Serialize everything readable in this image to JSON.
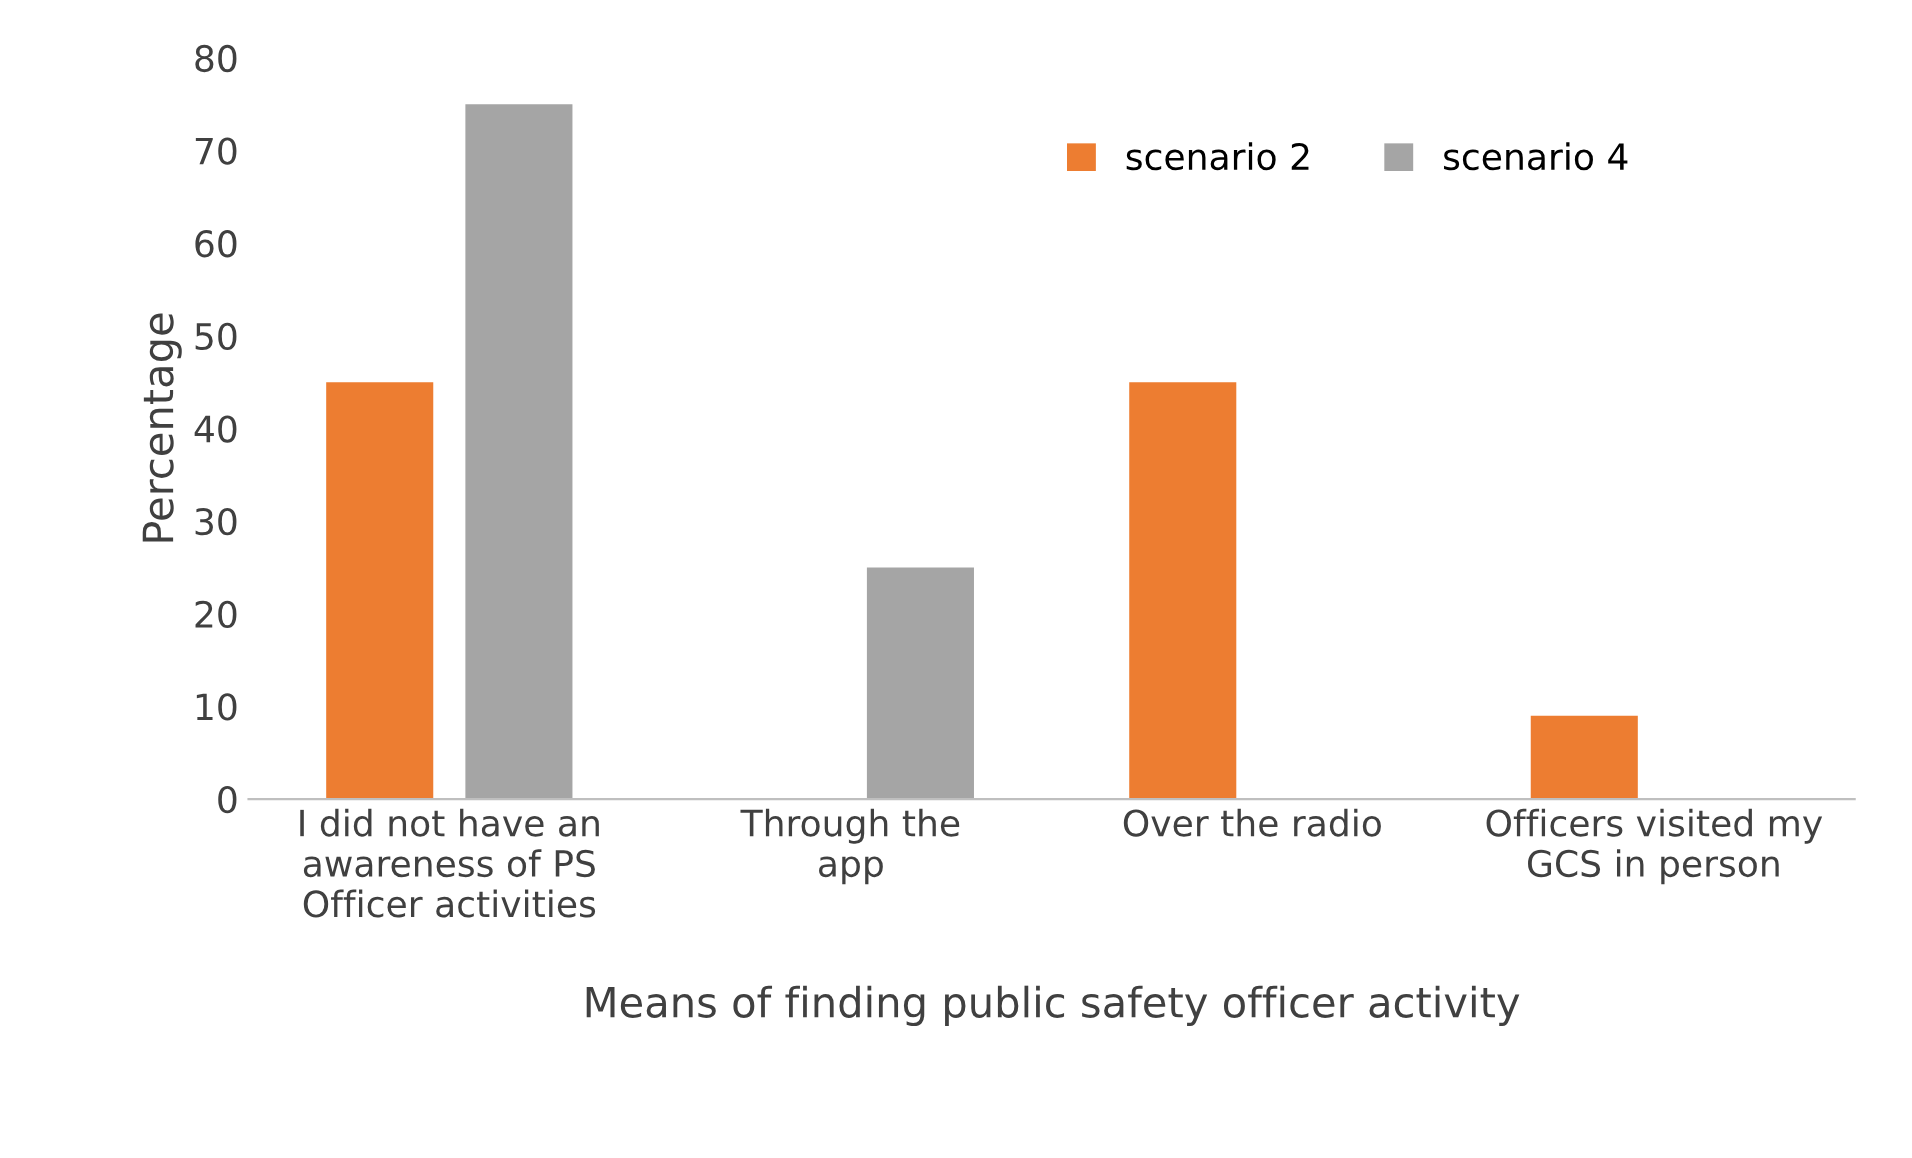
{
  "chart_data": {
    "type": "bar",
    "xlabel": "Means of finding public safety officer activity",
    "ylabel": "Percentage",
    "categories": [
      "I did not have an\nawareness of PS\nOfficer activities",
      "Through the\napp",
      "Over the radio",
      "Officers visited my\nGCS in person"
    ],
    "series": [
      {
        "name": "scenario 2",
        "color": "#ed7d31",
        "values": [
          45,
          0,
          45,
          9
        ]
      },
      {
        "name": "scenario 4",
        "color": "#a5a5a5",
        "values": [
          75,
          25,
          0,
          0
        ]
      }
    ],
    "ylim": [
      0,
      80
    ],
    "yticks": [
      0,
      10,
      20,
      30,
      40,
      50,
      60,
      70,
      80
    ],
    "grid": false,
    "legend": "top right"
  }
}
